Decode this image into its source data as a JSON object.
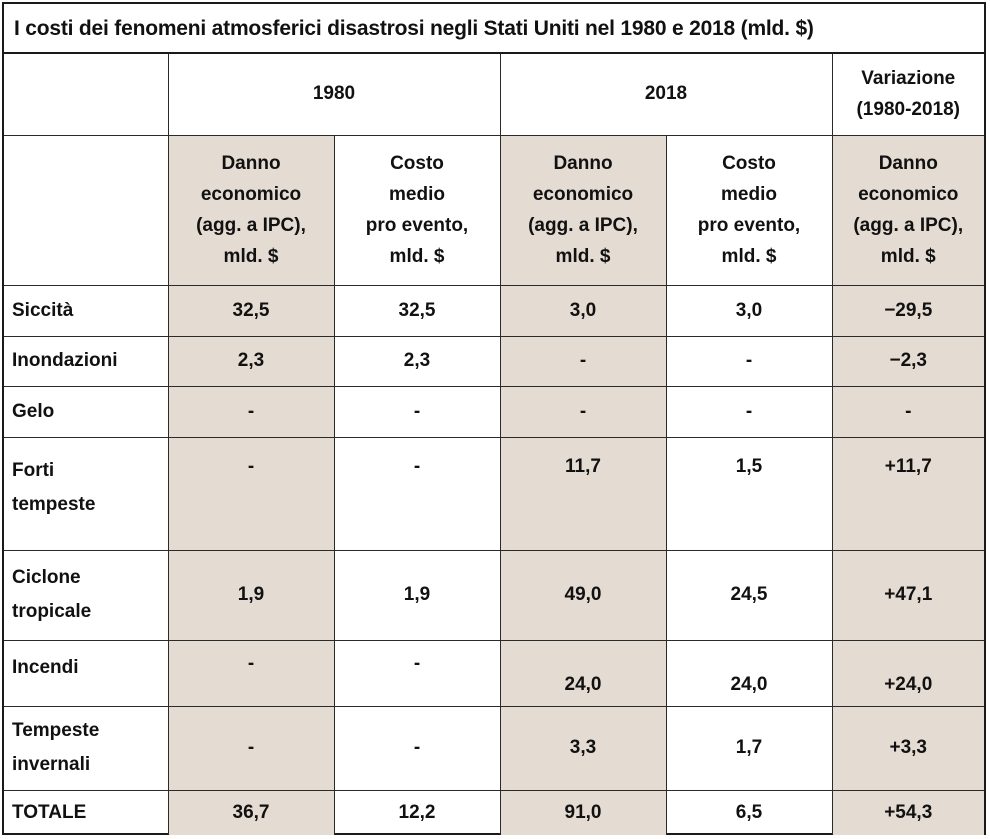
{
  "title": "I costi dei fenomeni atmosferici disastrosi negli Stati Uniti nel 1980 e 2018 (mld. $)",
  "header": {
    "year_1980": "1980",
    "year_2018": "2018",
    "variation": "Variazione (1980-2018)",
    "variation_line1": "Variazione",
    "variation_line2": "(1980-2018)"
  },
  "subheaders": {
    "danno": [
      "Danno",
      "economico",
      "(agg. a IPC),",
      "mld. $"
    ],
    "costo": [
      "Costo",
      "medio",
      "pro evento,",
      "mld. $"
    ]
  },
  "columns": [
    "Danno economico (agg. a IPC), mld. $",
    "Costo medio pro evento, mld. $",
    "Danno economico (agg. a IPC), mld. $",
    "Costo medio pro evento, mld. $",
    "Danno economico (agg. a IPC), mld. $"
  ],
  "rows": [
    {
      "label": [
        "Siccità"
      ],
      "values": [
        "32,5",
        "32,5",
        "3,0",
        "3,0",
        "−29,5"
      ]
    },
    {
      "label": [
        "Inondazioni"
      ],
      "values": [
        "2,3",
        "2,3",
        "-",
        "-",
        "−2,3"
      ]
    },
    {
      "label": [
        "Gelo"
      ],
      "values": [
        "-",
        "-",
        "-",
        "-",
        "-"
      ]
    },
    {
      "label": [
        "Forti",
        "tempeste"
      ],
      "values": [
        "-",
        "-",
        "11,7",
        "1,5",
        "+11,7"
      ]
    },
    {
      "label": [
        "Ciclone",
        "tropicale"
      ],
      "values": [
        "1,9",
        "1,9",
        "49,0",
        "24,5",
        "+47,1"
      ]
    },
    {
      "label": [
        "Incendi"
      ],
      "values": [
        "-",
        "-",
        "24,0",
        "24,0",
        "+24,0"
      ]
    },
    {
      "label": [
        "Tempeste",
        "invernali"
      ],
      "values": [
        "-",
        "-",
        "3,3",
        "1,7",
        "+3,3"
      ]
    }
  ],
  "total": {
    "label": "TOTALE",
    "values": [
      "36,7",
      "12,2",
      "91,0",
      "6,5",
      "+54,3"
    ]
  },
  "colors": {
    "shade": "#e4dbd2",
    "border": "#1a1a1a"
  }
}
